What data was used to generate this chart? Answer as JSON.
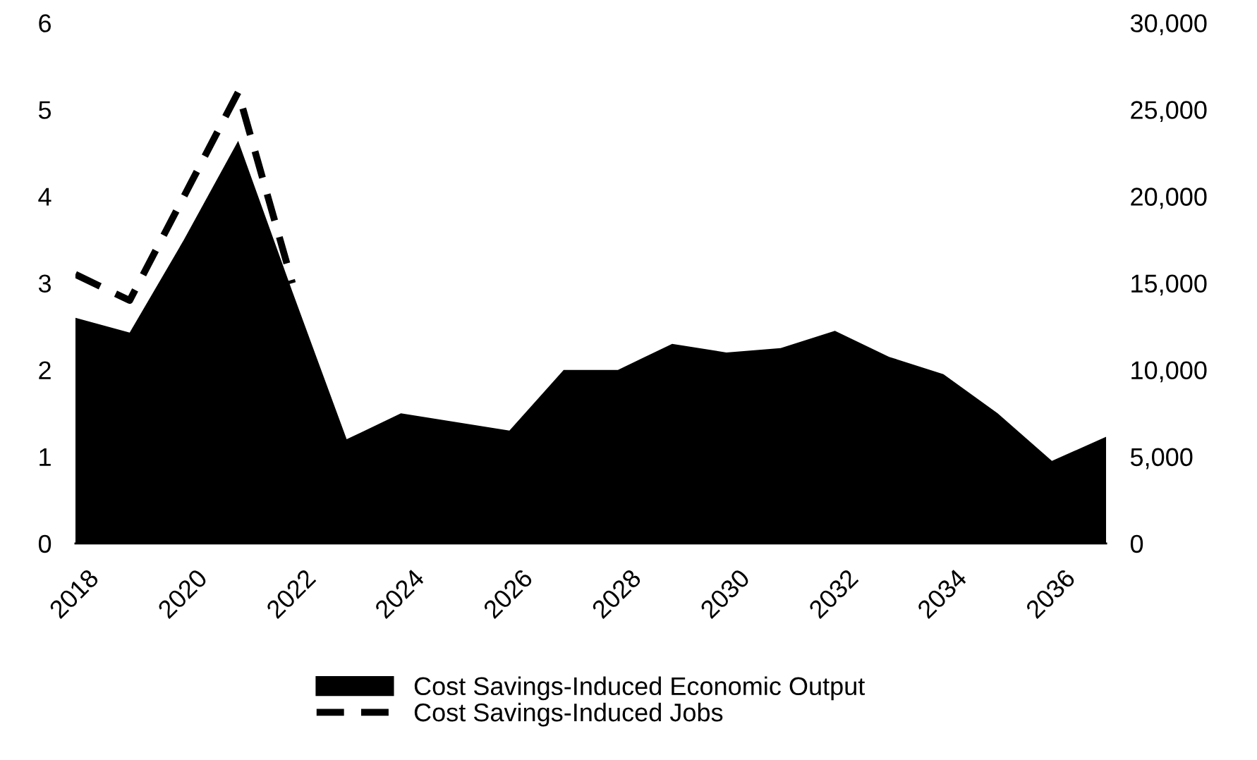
{
  "chart_data": {
    "type": "area",
    "x": [
      2018,
      2019,
      2020,
      2021,
      2022,
      2023,
      2024,
      2025,
      2026,
      2027,
      2028,
      2029,
      2030,
      2031,
      2032,
      2033,
      2034,
      2035,
      2036,
      2037
    ],
    "xlim": [
      2018,
      2037
    ],
    "xticks": [
      2018,
      2020,
      2022,
      2024,
      2026,
      2028,
      2030,
      2032,
      2034,
      2036
    ],
    "ylim": [
      0,
      6
    ],
    "yticks": [
      0,
      1,
      2,
      3,
      4,
      5,
      6
    ],
    "y2lim": [
      0,
      30000
    ],
    "y2ticks": [
      {
        "value": 0,
        "label": "0"
      },
      {
        "value": 5000,
        "label": "5,000"
      },
      {
        "value": 10000,
        "label": "10,000"
      },
      {
        "value": 15000,
        "label": "15,000"
      },
      {
        "value": 20000,
        "label": "20,000"
      },
      {
        "value": 25000,
        "label": "25,000"
      },
      {
        "value": 30000,
        "label": "30,000"
      }
    ],
    "series": [
      {
        "name": "Cost Savings-Induced Economic Output",
        "color": "#000000",
        "values": [
          2.6,
          2.43,
          3.5,
          4.64,
          2.9,
          1.2,
          1.5,
          1.4,
          1.3,
          2.0,
          2.0,
          2.3,
          2.2,
          2.25,
          2.45,
          2.15,
          1.95,
          1.5,
          0.95,
          1.23
        ]
      },
      {
        "name": "Cost Savings-Induced Jobs",
        "type": "line",
        "axis": "y2",
        "color": "#000000",
        "line_style": "dashed",
        "values": [
          15500,
          14000,
          20000,
          26000,
          15000,
          null,
          null,
          null,
          null,
          null,
          null,
          null,
          null,
          null,
          null,
          null,
          null,
          null,
          null,
          null
        ]
      }
    ],
    "legend": "bottom",
    "grid": false
  }
}
